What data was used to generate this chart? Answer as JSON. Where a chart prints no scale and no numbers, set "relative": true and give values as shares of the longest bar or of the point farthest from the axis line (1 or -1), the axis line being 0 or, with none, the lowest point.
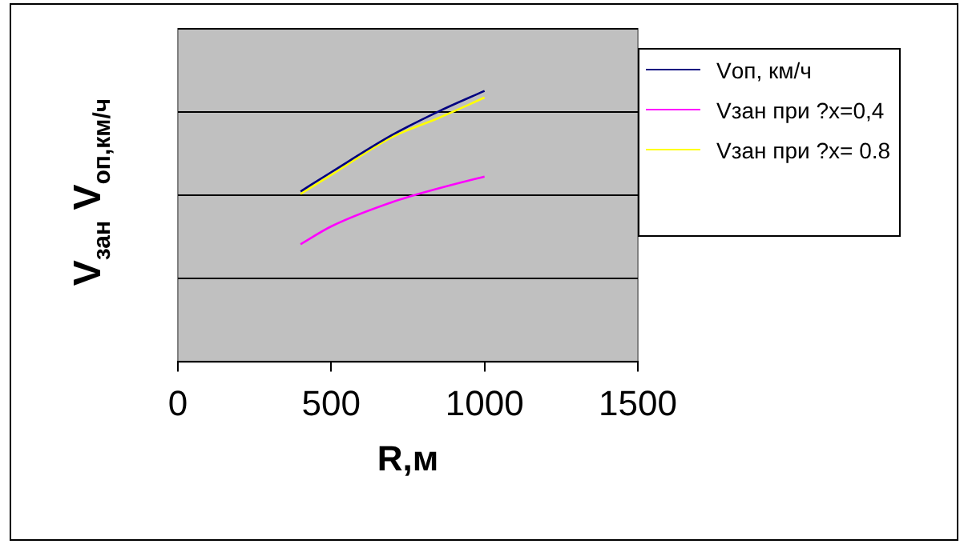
{
  "chart_data": {
    "type": "line",
    "xlabel": "R,м",
    "ylabel": "V$_{зан}$ V$_{оп,км/ч}$",
    "relative": true,
    "x": [
      400,
      500,
      700,
      850,
      1000
    ],
    "xlim": [
      0,
      1500
    ],
    "xticks": [
      0,
      500,
      1000,
      1500
    ],
    "grid": "y",
    "legend": "right",
    "marker": "none",
    "line_style": "solid",
    "series": [
      {
        "name": "Vоп, км/ч",
        "color": "#000080",
        "values": [
          0.629,
          0.7,
          0.838,
          0.924,
          1
        ]
      },
      {
        "name": "Vзан при ?x=0,4",
        "color": "#ff00ff",
        "values": [
          0.434,
          0.5,
          0.59,
          0.64,
          0.684
        ]
      },
      {
        "name": "Vзан при ?x= 0.8",
        "color": "#ffff00",
        "values": [
          0.62,
          0.69,
          0.83,
          0.9,
          0.975
        ]
      }
    ]
  }
}
